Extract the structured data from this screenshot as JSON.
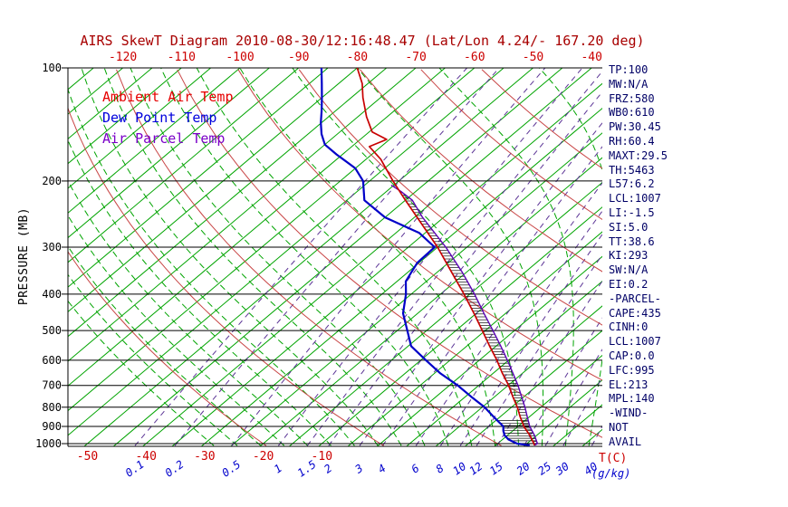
{
  "title": "AIRS SkewT Diagram 2010-08-30/12:16:48.47 (Lat/Lon 4.24/- 167.20 deg)",
  "legend": {
    "items": [
      {
        "label": "Ambient Air Temp",
        "color": "#e60000"
      },
      {
        "label": "Dew Point Temp",
        "color": "#0000dd"
      },
      {
        "label": "Air Parcel Temp",
        "color": "#7a00c8"
      }
    ]
  },
  "axes": {
    "pressure_axis_label": "PRESSURE (MB)",
    "pressure_ticks": [
      100,
      200,
      300,
      400,
      500,
      600,
      700,
      800,
      900,
      1000
    ],
    "top_temp_ticks_c": [
      -120,
      -110,
      -100,
      -90,
      -80,
      -70,
      -60,
      -50,
      -40
    ],
    "bottom_temp_ticks_c": [
      -50,
      -40,
      -30,
      -20,
      -10
    ],
    "temp_unit_label": "T(C)",
    "mixing_ratio_ticks_gkg": [
      0.1,
      0.2,
      0.5,
      1,
      1.5,
      2,
      3,
      4,
      6,
      8,
      10,
      12,
      15,
      20,
      25,
      30,
      40
    ],
    "mixing_unit_label": "(g/kg)"
  },
  "stats_panel": {
    "lines": [
      "TP:100",
      "MW:N/A",
      "FRZ:580",
      "WB0:610",
      "PW:30.45",
      "RH:60.4",
      "MAXT:29.5",
      "TH:5463",
      "L57:6.2",
      "LCL:1007",
      "LI:-1.5",
      "SI:5.0",
      "TT:38.6",
      "KI:293",
      "SW:N/A",
      "EI:0.2",
      "-PARCEL-",
      "CAPE:435",
      "CINH:0",
      "LCL:1007",
      "CAP:0.0",
      "LFC:995",
      "EL:213",
      "MPL:140",
      "-WIND-",
      "NOT",
      "AVAIL"
    ]
  },
  "chart_data": {
    "type": "skewt-log-p",
    "pressure_hpa_range": [
      100,
      1013
    ],
    "series": [
      {
        "name": "Ambient Air Temp",
        "color": "#c80000",
        "width": 1.7,
        "points_p_t": [
          [
            1010,
            26.6
          ],
          [
            1000,
            26.2
          ],
          [
            950,
            23.8
          ],
          [
            900,
            21.0
          ],
          [
            850,
            18.5
          ],
          [
            800,
            16.0
          ],
          [
            750,
            13.1
          ],
          [
            700,
            10.1
          ],
          [
            650,
            6.6
          ],
          [
            600,
            3.0
          ],
          [
            550,
            -1.1
          ],
          [
            500,
            -5.5
          ],
          [
            450,
            -10.4
          ],
          [
            400,
            -16.0
          ],
          [
            350,
            -22.5
          ],
          [
            300,
            -30.0
          ],
          [
            250,
            -39.5
          ],
          [
            225,
            -45.0
          ],
          [
            200,
            -51.0
          ],
          [
            185,
            -54.8
          ],
          [
            175,
            -57.5
          ],
          [
            162,
            -62.0
          ],
          [
            155,
            -60.5
          ],
          [
            148,
            -64.5
          ],
          [
            135,
            -68.5
          ],
          [
            120,
            -73.0
          ],
          [
            110,
            -76.0
          ],
          [
            100,
            -80.0
          ]
        ]
      },
      {
        "name": "Dew Point Temp",
        "color": "#0000c8",
        "width": 2.2,
        "points_p_t": [
          [
            1010,
            25.8
          ],
          [
            1000,
            23.3
          ],
          [
            975,
            21.0
          ],
          [
            950,
            19.5
          ],
          [
            925,
            18.4
          ],
          [
            900,
            17.5
          ],
          [
            850,
            14.0
          ],
          [
            800,
            10.4
          ],
          [
            750,
            6.0
          ],
          [
            700,
            1.4
          ],
          [
            650,
            -4.0
          ],
          [
            600,
            -9.1
          ],
          [
            550,
            -14.5
          ],
          [
            500,
            -18.3
          ],
          [
            450,
            -22.5
          ],
          [
            400,
            -25.9
          ],
          [
            370,
            -28.5
          ],
          [
            350,
            -29.4
          ],
          [
            330,
            -30.3
          ],
          [
            300,
            -30.5
          ],
          [
            275,
            -36.0
          ],
          [
            250,
            -45.0
          ],
          [
            225,
            -52.0
          ],
          [
            200,
            -56.1
          ],
          [
            185,
            -60.0
          ],
          [
            170,
            -66.0
          ],
          [
            160,
            -70.0
          ],
          [
            150,
            -72.7
          ],
          [
            140,
            -75.1
          ],
          [
            130,
            -77.4
          ],
          [
            120,
            -80.0
          ],
          [
            110,
            -82.9
          ],
          [
            100,
            -86.1
          ]
        ]
      },
      {
        "name": "Air Parcel Temp",
        "color": "#5a00b4",
        "width": 1.4,
        "points_p_t": [
          [
            1010,
            26.6
          ],
          [
            1000,
            26.8
          ],
          [
            950,
            24.6
          ],
          [
            900,
            22.0
          ],
          [
            850,
            19.7
          ],
          [
            800,
            17.3
          ],
          [
            750,
            14.6
          ],
          [
            700,
            11.7
          ],
          [
            650,
            8.4
          ],
          [
            600,
            4.8
          ],
          [
            550,
            0.8
          ],
          [
            500,
            -3.7
          ],
          [
            450,
            -8.7
          ],
          [
            400,
            -14.2
          ],
          [
            350,
            -20.7
          ],
          [
            300,
            -28.6
          ],
          [
            250,
            -38.6
          ],
          [
            225,
            -43.8
          ],
          [
            213,
            -47.6
          ],
          [
            205,
            -50.5
          ]
        ]
      }
    ],
    "grid": {
      "isotherms_c": {
        "start": -130,
        "end": 45,
        "step": 5
      },
      "isotherm_color": "#00a400",
      "dry_adiabats_theta_c": [
        -20,
        0,
        20,
        40,
        60,
        80,
        100,
        120,
        140
      ],
      "dry_adiabat_color": "#c84444",
      "moist_adiabats_start_c": {
        "start": -28,
        "end": 48,
        "step": 4
      },
      "moist_adiabat_color": "#00a400",
      "mixing_ratio_lines_gkg": [
        0.1,
        0.2,
        0.5,
        1,
        1.5,
        2,
        3,
        4,
        6,
        8,
        10,
        12,
        15,
        20,
        25,
        30,
        40
      ],
      "mixing_ratio_color": "#5c3596"
    },
    "cape_hatch": true
  },
  "colors": {
    "title": "#a80000",
    "axis": "#000000",
    "temp_tick_labels": "#cc0000",
    "mixing_tick_labels": "#0000cc",
    "stats_text": "#000066",
    "hatch": "#111111",
    "background": "#ffffff"
  }
}
